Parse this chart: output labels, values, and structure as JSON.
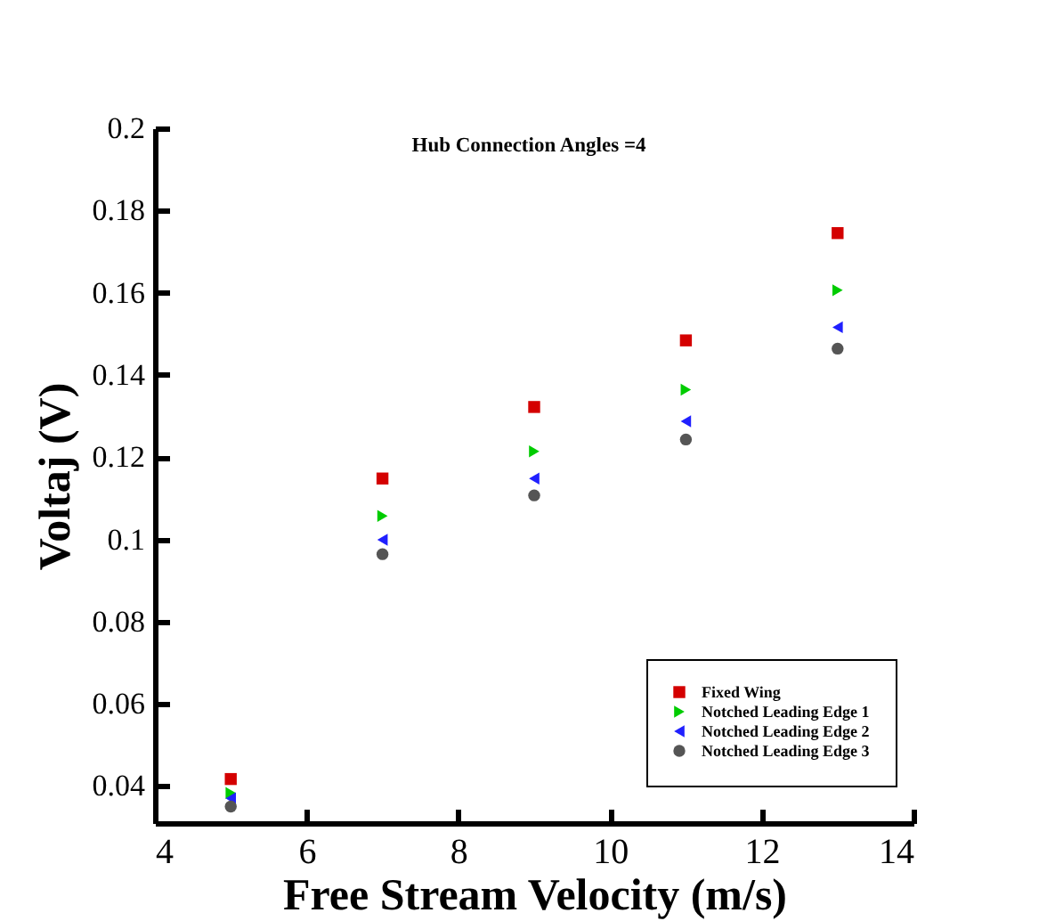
{
  "chart_data": {
    "type": "scatter",
    "title": "Hub Connection Angles =4",
    "xlabel": "Free Stream Velocity (m/s)",
    "ylabel": "Voltaj (V)",
    "x": [
      5,
      7,
      9,
      11,
      13
    ],
    "xlim": [
      4,
      14
    ],
    "xticks": [
      4,
      6,
      8,
      10,
      12,
      14
    ],
    "ylim": [
      0.031,
      0.2
    ],
    "yticks": [
      0.04,
      0.06,
      0.08,
      0.1,
      0.12,
      0.14,
      0.16,
      0.18,
      0.2
    ],
    "grid": false,
    "legend": "bottom right",
    "series": [
      {
        "name": "Fixed Wing",
        "color": "#d40000",
        "marker": "square",
        "values": [
          0.0417,
          0.1148,
          0.1322,
          0.1484,
          0.1745
        ]
      },
      {
        "name": "Notched Leading Edge 1",
        "color": "#00cc00",
        "marker": "triangle-right",
        "values": [
          0.0383,
          0.1057,
          0.1214,
          0.1364,
          0.1606
        ]
      },
      {
        "name": "Notched Leading Edge 2",
        "color": "#2020ff",
        "marker": "triangle-left",
        "values": [
          0.037,
          0.0999,
          0.1148,
          0.1287,
          0.1516
        ]
      },
      {
        "name": "Notched Leading Edge 3",
        "color": "#555555",
        "marker": "circle",
        "values": [
          0.035,
          0.0964,
          0.1107,
          0.1243,
          0.1464
        ]
      }
    ]
  }
}
